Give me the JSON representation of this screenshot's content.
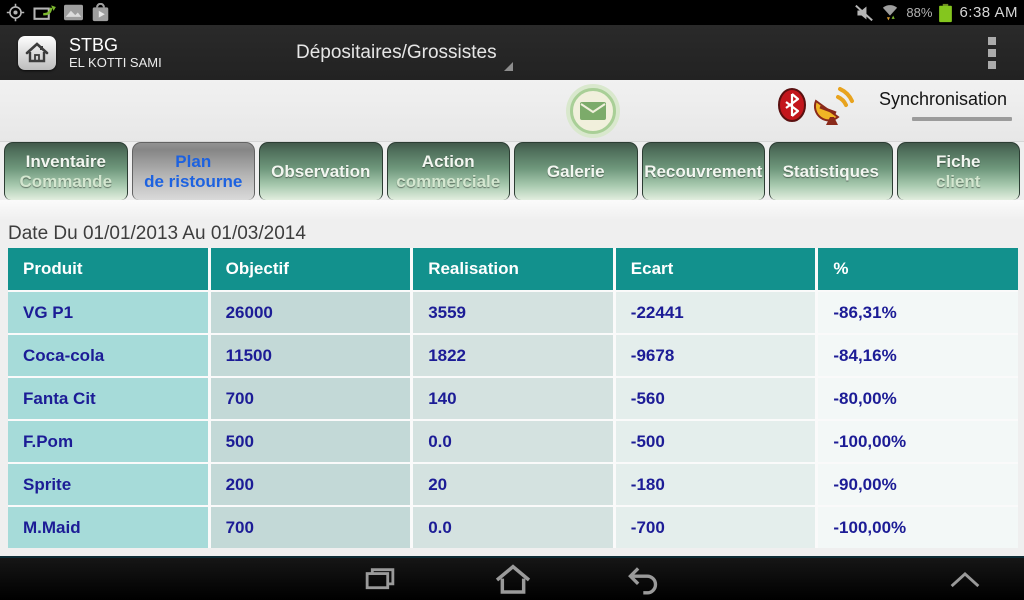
{
  "status_bar": {
    "battery_percent": "88%",
    "time": "6:38 AM"
  },
  "action_bar": {
    "title": "STBG",
    "subtitle": "EL KOTTI SAMI",
    "spinner_label": "Dépositaires/Grossistes"
  },
  "toolbar": {
    "sync_label": "Synchronisation"
  },
  "tabs": [
    {
      "id": "inventaire-commande",
      "lines": [
        "Inventaire",
        "Commande"
      ],
      "active": false
    },
    {
      "id": "plan-de-ristourne",
      "lines": [
        "Plan",
        "de ristourne"
      ],
      "active": true
    },
    {
      "id": "observation",
      "lines": [
        "Observation"
      ],
      "active": false
    },
    {
      "id": "action-commerciale",
      "lines": [
        "Action",
        "commerciale"
      ],
      "active": false
    },
    {
      "id": "galerie",
      "lines": [
        "Galerie"
      ],
      "active": false
    },
    {
      "id": "recouvrement",
      "lines": [
        "Recouvrement"
      ],
      "active": false
    },
    {
      "id": "statistiques",
      "lines": [
        "Statistiques"
      ],
      "active": false
    },
    {
      "id": "fiche-client",
      "lines": [
        "Fiche",
        "client"
      ],
      "active": false
    }
  ],
  "date_range": "Date Du 01/01/2013 Au 01/03/2014",
  "table": {
    "headers": [
      "Produit",
      "Objectif",
      "Realisation",
      "Ecart",
      "%"
    ],
    "rows": [
      [
        "VG P1",
        "26000",
        "3559",
        "-22441",
        "-86,31%"
      ],
      [
        "Coca-cola",
        "11500",
        "1822",
        "-9678",
        "-84,16%"
      ],
      [
        "Fanta Cit",
        "700",
        "140",
        "-560",
        "-80,00%"
      ],
      [
        "F.Pom",
        "500",
        "0.0",
        "-500",
        "-100,00%"
      ],
      [
        "Sprite",
        "200",
        "20",
        "-180",
        "-90,00%"
      ],
      [
        "M.Maid",
        "700",
        "0.0",
        "-700",
        "-100,00%"
      ]
    ]
  },
  "colors": {
    "header_teal": "#12918d",
    "cell_text": "#1c1c96",
    "tab_active_text": "#1d62e0",
    "column_backgrounds": [
      "#a6dbd9",
      "#c3d9d7",
      "#d4e2e0",
      "#e4eeec",
      "#f3f8f7"
    ]
  }
}
